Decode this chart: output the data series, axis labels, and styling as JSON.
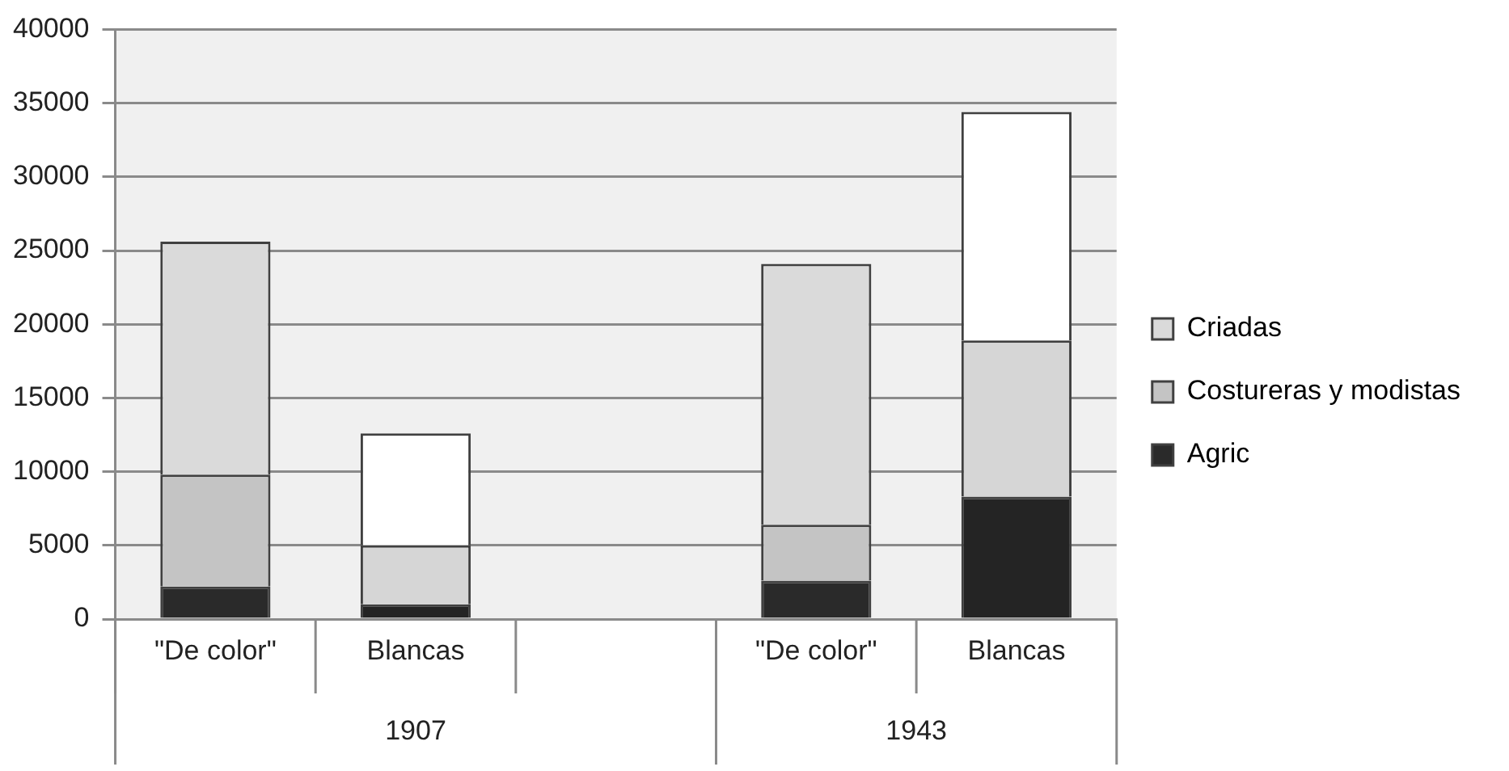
{
  "chart_data": {
    "type": "bar",
    "stacked": true,
    "categories": [
      "\"De color\"",
      "Blancas",
      null,
      "\"De color\"",
      "Blancas"
    ],
    "series": [
      {
        "name": "Agric",
        "color": "#2a2a2a",
        "colors": [
          "#2a2a2a",
          "#242424",
          null,
          "#2a2a2a",
          "#242424"
        ],
        "values": [
          2200,
          1000,
          null,
          2600,
          8300
        ]
      },
      {
        "name": "Costureras y modistas",
        "color": "#c4c4c4",
        "colors": [
          "#c4c4c4",
          "#d6d6d6",
          null,
          "#c4c4c4",
          "#d6d6d6"
        ],
        "values": [
          7600,
          4000,
          null,
          3800,
          10600
        ]
      },
      {
        "name": "Criadas",
        "color": "#dadada",
        "colors": [
          "#dadada",
          "#ffffff",
          null,
          "#dadada",
          "#ffffff"
        ],
        "values": [
          15800,
          7600,
          null,
          17700,
          15500
        ]
      }
    ],
    "annotations": [
      "1907",
      "1943"
    ],
    "ylim": [
      0,
      40000
    ],
    "yticks": [
      0,
      5000,
      10000,
      15000,
      20000,
      25000,
      30000,
      35000,
      40000
    ],
    "grid": "y",
    "legend": "right"
  }
}
